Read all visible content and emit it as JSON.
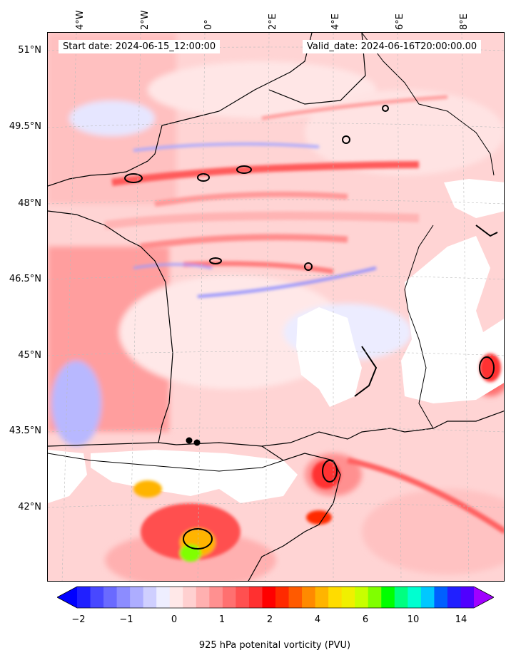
{
  "header": {
    "start_date": "Start date: 2024-06-15_12:00:00",
    "valid_date": "Valid_date: 2024-06-16T20:00:00.00"
  },
  "map": {
    "longitude_labels": [
      "4°W",
      "2°W",
      "0°",
      "2°E",
      "4°E",
      "6°E",
      "8°E"
    ],
    "latitude_labels": [
      "51°N",
      "49.5°N",
      "48°N",
      "46.5°N",
      "45°N",
      "43.5°N",
      "42°N"
    ],
    "field": "potential vorticity",
    "colors": {
      "ocean_low": "#ffd6d6",
      "land_mid": "#ffb0b0",
      "positive_strong": "#ff3030",
      "negative": "#6a6aff",
      "masked_terrain": "#ffffff",
      "contour": "#000000"
    }
  },
  "colorbar": {
    "tick_labels": [
      "-2",
      "-1",
      "0",
      "1",
      "2",
      "4",
      "6",
      "10",
      "14"
    ],
    "label": "925 hPa potenital vorticity (PVU)",
    "colors": [
      "#0000ff",
      "#2020ff",
      "#4848ff",
      "#6a6aff",
      "#8c8cff",
      "#adadff",
      "#cfcfff",
      "#eeeeff",
      "#ffe8e8",
      "#ffd0d0",
      "#ffb0b0",
      "#ff9090",
      "#ff7070",
      "#ff5050",
      "#ff3030",
      "#ff0000",
      "#ff2a00",
      "#ff5a00",
      "#ff8a00",
      "#ffb400",
      "#ffdc00",
      "#f0f000",
      "#c8ff00",
      "#80ff00",
      "#00ff00",
      "#00ff80",
      "#00ffd0",
      "#00c8ff",
      "#0060ff",
      "#2020ff",
      "#5000ff",
      "#a000ff"
    ]
  }
}
